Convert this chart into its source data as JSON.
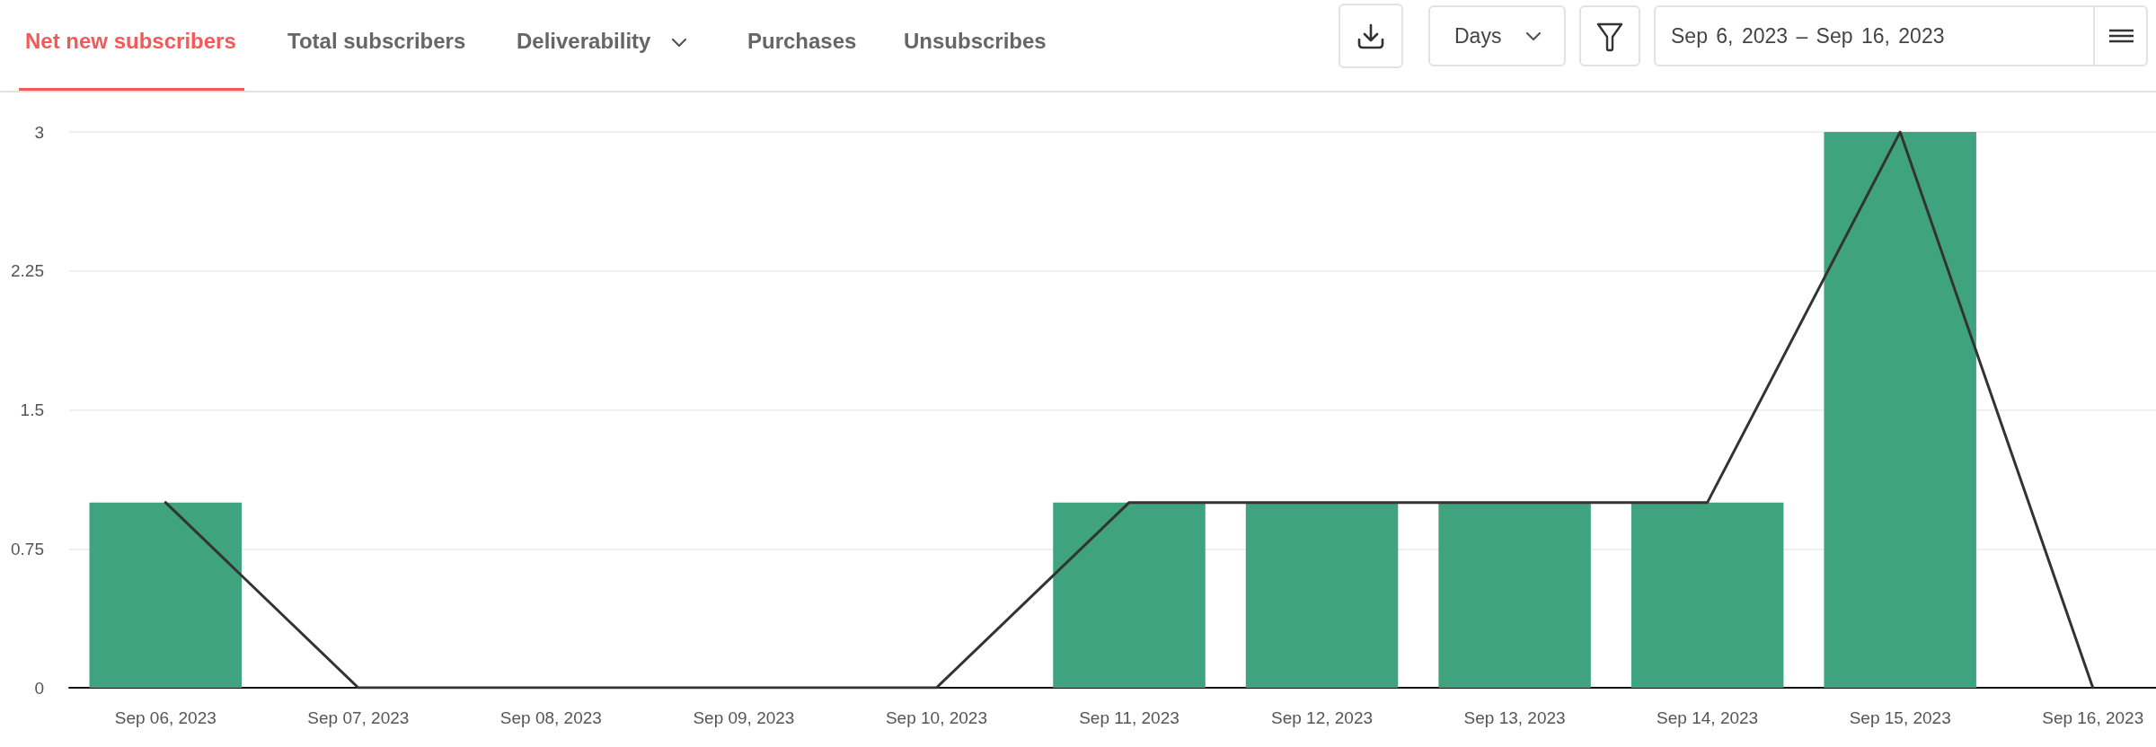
{
  "chart_data": {
    "type": "bar",
    "title": "Net new subscribers",
    "annotations": [
      "Total subscribers",
      "Deliverability",
      "Purchases",
      "Unsubscribes",
      "Days",
      "Sep 6, 2023 – Sep 16, 2023"
    ],
    "categories": [
      "Sep 06, 2023",
      "Sep 07, 2023",
      "Sep 08, 2023",
      "Sep 09, 2023",
      "Sep 10, 2023",
      "Sep 11, 2023",
      "Sep 12, 2023",
      "Sep 13, 2023",
      "Sep 14, 2023",
      "Sep 15, 2023",
      "Sep 16, 2023"
    ],
    "series": [
      {
        "color": "#3fa380",
        "values": [
          1,
          0,
          0,
          0,
          0,
          1,
          1,
          1,
          1,
          3,
          0
        ]
      },
      {
        "type": "line",
        "color": "#333333",
        "values": [
          1,
          0,
          0,
          0,
          0,
          1,
          1,
          1,
          1,
          3,
          0
        ]
      }
    ],
    "ylim": [
      0,
      3
    ],
    "yticks": [
      0,
      0.75,
      1.5,
      2.25,
      3
    ],
    "grid": "y",
    "marker": "none",
    "line_style": "solid"
  }
}
